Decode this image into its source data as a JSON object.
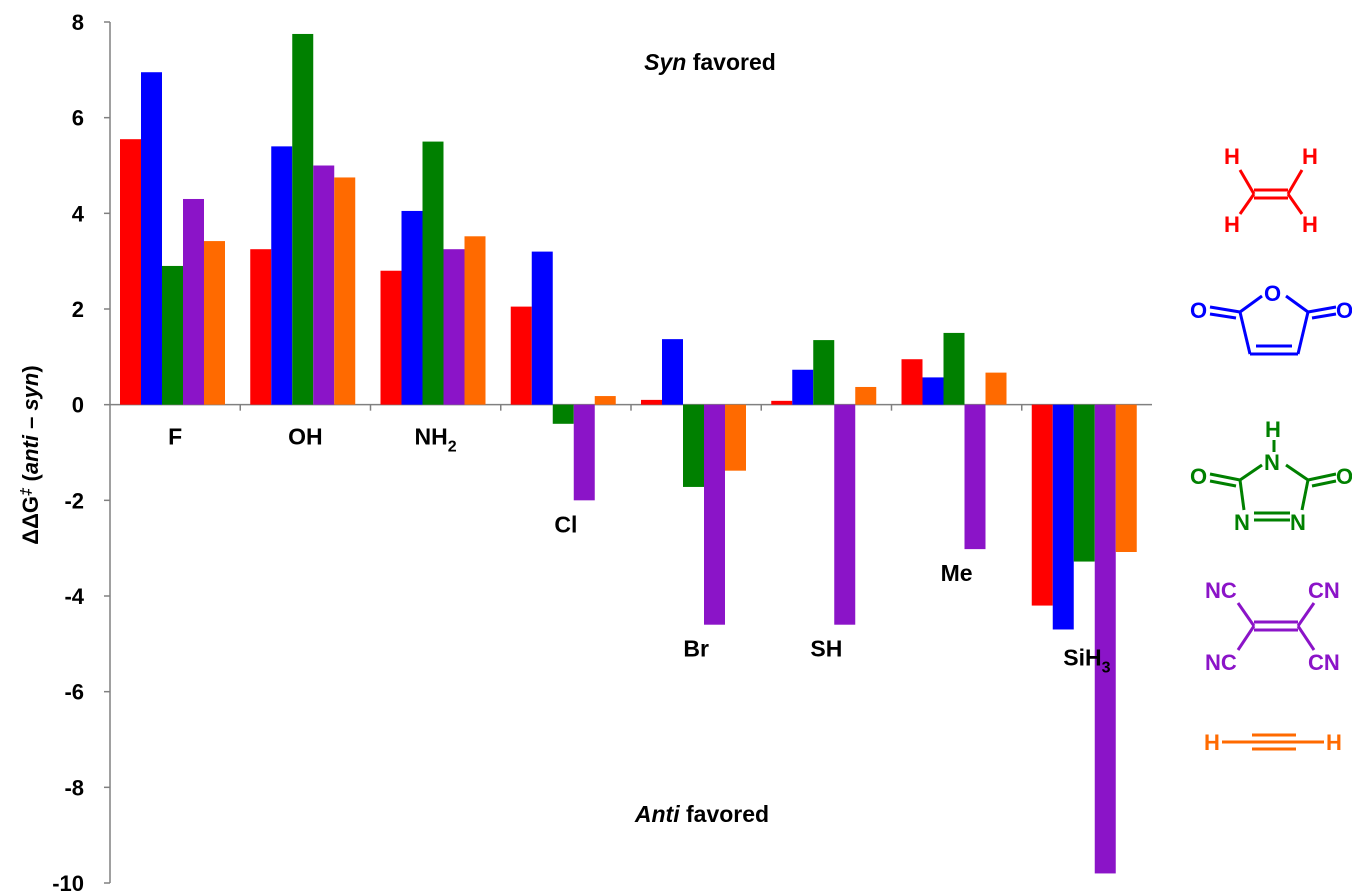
{
  "chart_data": {
    "type": "bar",
    "ylabel": {
      "prefix": "ΔΔG",
      "sup": "‡",
      "open": " (",
      "anti": "anti",
      "dash": " – ",
      "syn": "syn",
      "close": ")"
    },
    "ylim": [
      -10,
      8
    ],
    "yticks": [
      "8",
      "6",
      "4",
      "2",
      "0",
      "-2",
      "-4",
      "-6",
      "-8",
      "-10"
    ],
    "grid": false,
    "legend_position": "right",
    "categories": [
      {
        "label": "F",
        "sub": ""
      },
      {
        "label": "OH",
        "sub": ""
      },
      {
        "label": "NH",
        "sub": "2"
      },
      {
        "label": "Cl",
        "sub": ""
      },
      {
        "label": "Br",
        "sub": ""
      },
      {
        "label": "SH",
        "sub": ""
      },
      {
        "label": "Me",
        "sub": ""
      },
      {
        "label": "SiH",
        "sub": "3"
      }
    ],
    "series": [
      {
        "color": "#ff0000",
        "values": [
          5.55,
          3.25,
          2.8,
          2.05,
          0.1,
          0.08,
          0.95,
          -4.2
        ]
      },
      {
        "color": "#0000ff",
        "values": [
          6.95,
          5.4,
          4.05,
          3.2,
          1.37,
          0.73,
          0.57,
          -4.7
        ]
      },
      {
        "color": "#008000",
        "values": [
          2.9,
          7.75,
          5.5,
          -0.4,
          -1.72,
          1.35,
          1.5,
          -3.28
        ]
      },
      {
        "color": "#8b14c8",
        "values": [
          4.3,
          5.0,
          3.25,
          -2.0,
          -4.6,
          -4.6,
          -3.02,
          -9.8
        ]
      },
      {
        "color": "#ff6a00",
        "values": [
          3.42,
          4.75,
          3.52,
          0.18,
          -1.38,
          0.37,
          0.67,
          -3.08
        ]
      }
    ],
    "annotations": {
      "syn_italic": "Syn",
      "syn_rest": " favored",
      "anti_italic": "Anti",
      "anti_rest": " favored"
    }
  },
  "legend_structures": [
    {
      "name": "ethylene",
      "color": "#ff0000",
      "atoms": [
        "H",
        "H",
        "H",
        "H"
      ]
    },
    {
      "name": "maleic anhydride",
      "color": "#0000ff",
      "atoms": [
        "O",
        "O",
        "O"
      ]
    },
    {
      "name": "triazolinedione",
      "color": "#008000",
      "atoms": [
        "H",
        "N",
        "O",
        "O",
        "N",
        "N"
      ]
    },
    {
      "name": "tetracyanoethylene",
      "color": "#8b14c8",
      "atoms": [
        "NC",
        "CN",
        "NC",
        "CN"
      ]
    },
    {
      "name": "acetylene",
      "color": "#ff6a00",
      "atoms": [
        "H",
        "H"
      ]
    }
  ]
}
